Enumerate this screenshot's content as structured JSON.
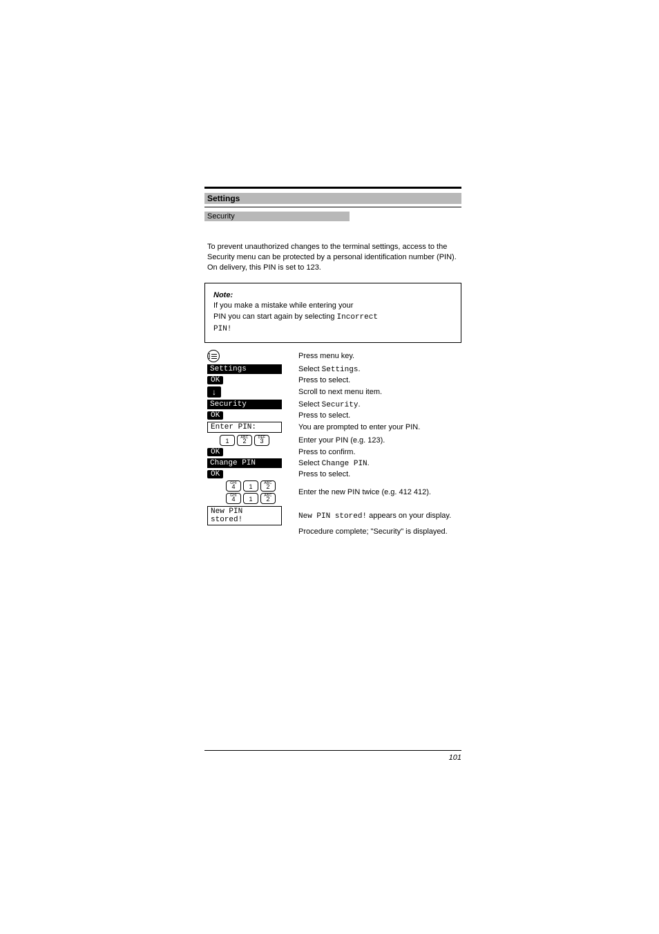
{
  "header": {
    "title": "Settings",
    "subtitle": "Security"
  },
  "intro": "To prevent unauthorized changes to the terminal settings, access to the Security menu can be protected by a personal identification number (PIN). On delivery, this PIN is set to 123.",
  "note": {
    "heading": "Note:",
    "line1": "If you make a mistake while entering your",
    "line2a": "PIN you can start again by selecting",
    "line2b": "Incorrect",
    "line3": "PIN!"
  },
  "steps": {
    "menu_hint": "Press menu key.",
    "settings_label": "Settings",
    "settings_desc": "Select Settings.",
    "ok_select": "Press to select.",
    "ok_confirm": "Press to confirm.",
    "scroll_desc": "Scroll to next menu item.",
    "security_label": "Security",
    "security_desc": "Select Security.",
    "enter_pin_label": "Enter PIN:",
    "enter_pin_desc": "You are prompted to enter your PIN.",
    "keys_a": [
      "1",
      "2",
      "3"
    ],
    "keys_a_sup": [
      "",
      "ABC",
      "DEF"
    ],
    "pin_a_desc": "Enter your PIN (e.g. 123).",
    "change_pin_label": "Change PIN",
    "change_pin_desc": "Select Change PIN.",
    "keys_b": [
      "4",
      "1",
      "2"
    ],
    "keys_b_sup": [
      "GHI",
      "",
      "ABC"
    ],
    "pin_b_desc": "Enter the new PIN twice (e.g. 412 412).",
    "stored_label": "New PIN stored!",
    "stored_desc": "New PIN stored! appears on your display.",
    "done": "Procedure complete; \"Security\" is displayed."
  },
  "page_number": "101"
}
